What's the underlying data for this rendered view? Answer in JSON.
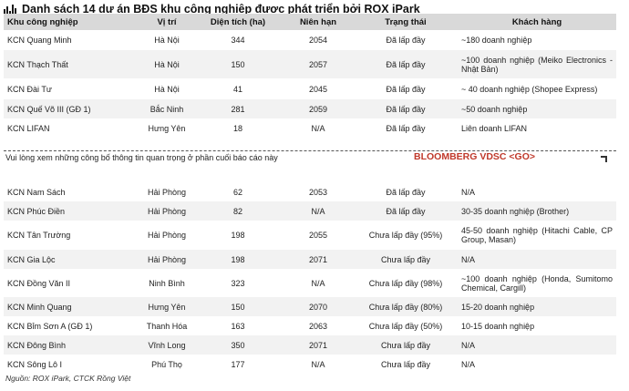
{
  "title": "Danh sách 14 dự án BĐS khu công nghiệp được phát triển bởi ROX iPark",
  "table1": {
    "headers": [
      "Khu công nghiệp",
      "Vị trí",
      "Diện tích (ha)",
      "Niên hạn",
      "Trạng thái",
      "Khách hàng"
    ],
    "rows": [
      [
        "KCN Quang Minh",
        "Hà Nội",
        "344",
        "2054",
        "Đã lấp đầy",
        "~180 doanh nghiệp"
      ],
      [
        "KCN Thạch Thất",
        "Hà Nội",
        "150",
        "2057",
        "Đã lấp đầy",
        "~100 doanh nghiệp (Meiko Electronics - Nhật Bản)"
      ],
      [
        "KCN Đài Tư",
        "Hà Nội",
        "41",
        "2045",
        "Đã lấp đầy",
        "~ 40 doanh nghiệp (Shopee Express)"
      ],
      [
        "KCN Quế Võ III (GĐ 1)",
        "Bắc Ninh",
        "281",
        "2059",
        "Đã lấp đầy",
        "~50 doanh nghiệp"
      ],
      [
        "KCN LIFAN",
        "Hưng Yên",
        "18",
        "N/A",
        "Đã lấp đầy",
        "Liên doanh LIFAN"
      ]
    ]
  },
  "notice": "Vui lòng xem những công bố thông tin quan trọng ở phần cuối báo cáo này",
  "bloomberg": "BLOOMBERG VDSC <GO>",
  "table2": {
    "rows": [
      [
        "KCN Nam Sách",
        "Hải Phòng",
        "62",
        "2053",
        "Đã lấp đầy",
        "N/A"
      ],
      [
        "KCN Phúc Điền",
        "Hải Phòng",
        "82",
        "N/A",
        "Đã lấp đầy",
        "30-35 doanh nghiệp (Brother)"
      ],
      [
        "KCN Tân Trường",
        "Hải Phòng",
        "198",
        "2055",
        "Chưa lấp đầy (95%)",
        "45-50 doanh nghiệp (Hitachi Cable, CP Group, Masan)"
      ],
      [
        "KCN Gia Lộc",
        "Hải Phòng",
        "198",
        "2071",
        "Chưa lấp đầy",
        "N/A"
      ],
      [
        "KCN Đồng Văn II",
        "Ninh Bình",
        "323",
        "N/A",
        "Chưa lấp đầy (98%)",
        "~100 doanh nghiệp (Honda, Sumitomo Chemical, Cargill)"
      ],
      [
        "KCN Minh Quang",
        "Hưng Yên",
        "150",
        "2070",
        "Chưa lấp đầy (80%)",
        "15-20 doanh nghiệp"
      ],
      [
        "KCN Bỉm Sơn A (GĐ 1)",
        "Thanh Hóa",
        "163",
        "2063",
        "Chưa lấp đầy (50%)",
        "10-15 doanh nghiệp"
      ],
      [
        "KCN Đông Bình",
        "Vĩnh Long",
        "350",
        "2071",
        "Chưa lấp đầy",
        "N/A"
      ],
      [
        "KCN Sông Lô I",
        "Phú Thọ",
        "177",
        "N/A",
        "Chưa lấp đầy",
        "N/A"
      ]
    ]
  },
  "source": "Nguồn: ROX iPark, CTCK Rồng Việt"
}
